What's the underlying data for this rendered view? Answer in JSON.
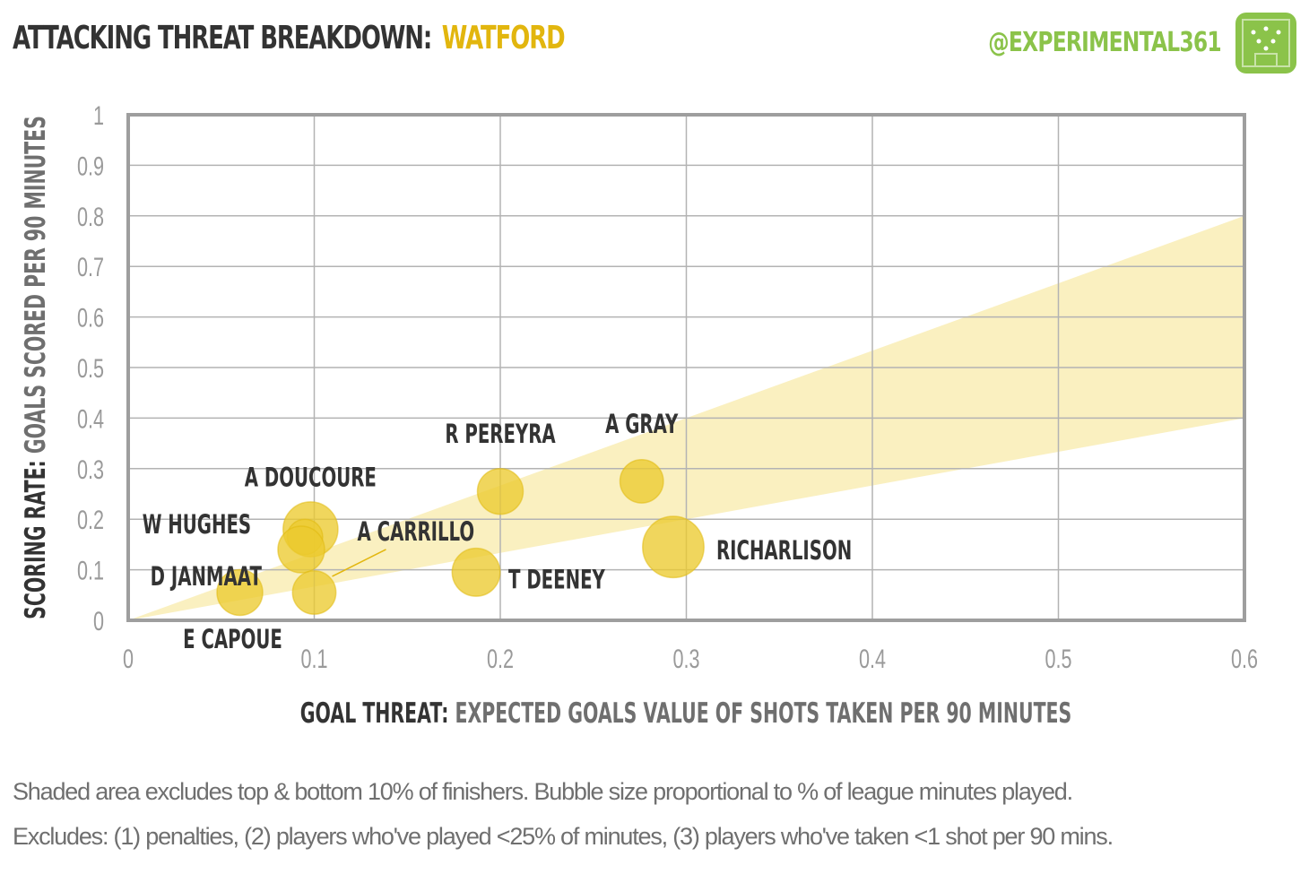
{
  "header": {
    "title_lead": "ATTACKING THREAT BREAKDOWN:",
    "title_team": "WATFORD",
    "handle": "@EXPERIMENTAL361",
    "logo_icon": "pitch-logo-icon"
  },
  "colors": {
    "accent": "#e2b60e",
    "bubble": "#eccb2f",
    "band": "#f9eeb9",
    "brand_green": "#8bc34a",
    "grid": "#b3b3b3",
    "frame": "#9e9e9e"
  },
  "chart_data": {
    "type": "scatter",
    "title": "ATTACKING THREAT BREAKDOWN: WATFORD",
    "xlabel_bold": "GOAL THREAT:",
    "xlabel_rest": "EXPECTED GOALS VALUE OF SHOTS TAKEN PER 90 MINUTES",
    "ylabel_bold": "SCORING RATE:",
    "ylabel_rest": "GOALS SCORED PER 90 MINUTES",
    "xlim": [
      0,
      0.6
    ],
    "ylim": [
      0,
      1
    ],
    "x_ticks": [
      0,
      0.1,
      0.2,
      0.3,
      0.4,
      0.5,
      0.6
    ],
    "x_tick_labels": [
      "0",
      "0.1",
      "0.2",
      "0.3",
      "0.4",
      "0.5",
      "0.6"
    ],
    "y_ticks": [
      0,
      0.1,
      0.2,
      0.3,
      0.4,
      0.5,
      0.6,
      0.7,
      0.8,
      0.9,
      1
    ],
    "y_tick_labels": [
      "0",
      "0.1",
      "0.2",
      "0.3",
      "0.4",
      "0.5",
      "0.6",
      "0.7",
      "0.8",
      "0.9",
      "1"
    ],
    "grid": true,
    "shaded_band": {
      "lower": [
        [
          0,
          0
        ],
        [
          0.6,
          0.4
        ]
      ],
      "upper": [
        [
          0,
          0
        ],
        [
          0.6,
          0.8
        ]
      ]
    },
    "points": [
      {
        "name": "A DOUCOURE",
        "x": 0.098,
        "y": 0.18,
        "size": 0.72,
        "label_pos": "top"
      },
      {
        "name": "W HUGHES",
        "x": 0.095,
        "y": 0.165,
        "size": 0.3,
        "label_pos": "top-left"
      },
      {
        "name": "D JANMAAT",
        "x": 0.093,
        "y": 0.14,
        "size": 0.52,
        "label_pos": "left"
      },
      {
        "name": "A CARRILLO",
        "x": 0.1,
        "y": 0.055,
        "size": 0.45,
        "label_pos": "right"
      },
      {
        "name": "E CAPOUE",
        "x": 0.06,
        "y": 0.055,
        "size": 0.5,
        "label_pos": "bottom"
      },
      {
        "name": "R PEREYRA",
        "x": 0.2,
        "y": 0.255,
        "size": 0.5,
        "label_pos": "top"
      },
      {
        "name": "T DEENEY",
        "x": 0.187,
        "y": 0.095,
        "size": 0.55,
        "label_pos": "right"
      },
      {
        "name": "A GRAY",
        "x": 0.276,
        "y": 0.275,
        "size": 0.45,
        "label_pos": "top"
      },
      {
        "name": "RICHARLISON",
        "x": 0.293,
        "y": 0.145,
        "size": 0.9,
        "label_pos": "right"
      }
    ]
  },
  "notes": {
    "line1": "Shaded area excludes top & bottom 10% of finishers. Bubble size proportional to % of league minutes played.",
    "line2": "Excludes: (1) penalties, (2) players who've played <25% of minutes, (3) players who've taken <1 shot per 90 mins."
  }
}
